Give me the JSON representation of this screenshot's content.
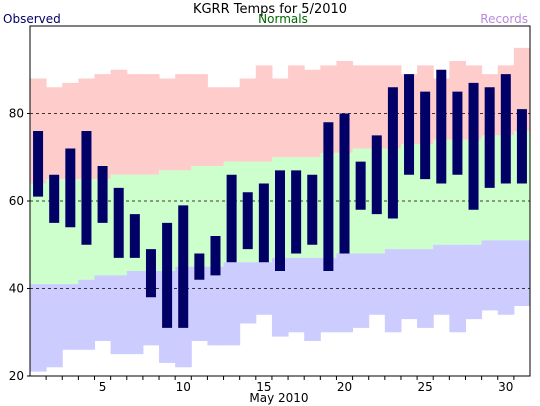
{
  "chart_data": {
    "type": "bar",
    "title": "KGRR Temps for 5/2010",
    "xlabel": "May 2010",
    "ylabel": "",
    "ylim": [
      20,
      100
    ],
    "xlim": [
      1,
      31
    ],
    "yticks": [
      20,
      40,
      60,
      80
    ],
    "xticks": [
      5,
      10,
      15,
      20,
      25,
      30
    ],
    "grid": "dashed horizontal at 40, 60, 80",
    "legend": [
      {
        "name": "Observed",
        "color": "#000066",
        "placement": "top-left"
      },
      {
        "name": "Normals",
        "color": "#006600",
        "placement": "top-center"
      },
      {
        "name": "Records",
        "color": "#bb88dd",
        "placement": "top-right"
      }
    ],
    "colors": {
      "record_high_band": "#ffcccc",
      "normal_band": "#ccffcc",
      "record_low_band": "#ccccff",
      "observed": "#000066"
    },
    "days": [
      1,
      2,
      3,
      4,
      5,
      6,
      7,
      8,
      9,
      10,
      11,
      12,
      13,
      14,
      15,
      16,
      17,
      18,
      19,
      20,
      21,
      22,
      23,
      24,
      25,
      26,
      27,
      28,
      29,
      30,
      31
    ],
    "record_high": [
      88,
      86,
      87,
      88,
      89,
      90,
      89,
      89,
      88,
      89,
      89,
      86,
      86,
      88,
      91,
      88,
      91,
      90,
      91,
      92,
      91,
      91,
      91,
      89,
      91,
      88,
      92,
      91,
      89,
      91,
      95
    ],
    "normal_high": [
      64,
      65,
      65,
      65,
      65,
      66,
      66,
      66,
      67,
      67,
      68,
      68,
      69,
      69,
      69,
      70,
      70,
      70,
      71,
      71,
      72,
      72,
      72,
      73,
      73,
      74,
      74,
      74,
      75,
      75,
      76
    ],
    "normal_low": [
      41,
      41,
      41,
      42,
      43,
      43,
      44,
      44,
      44,
      45,
      45,
      45,
      46,
      46,
      46,
      47,
      47,
      47,
      47,
      48,
      48,
      48,
      49,
      49,
      49,
      50,
      50,
      50,
      51,
      51,
      51
    ],
    "record_low": [
      21,
      22,
      26,
      26,
      28,
      25,
      25,
      27,
      23,
      22,
      28,
      27,
      27,
      32,
      34,
      29,
      30,
      28,
      30,
      30,
      31,
      34,
      30,
      33,
      31,
      34,
      30,
      33,
      35,
      34,
      36
    ],
    "observed_high": [
      76,
      66,
      72,
      76,
      68,
      63,
      57,
      49,
      55,
      59,
      48,
      52,
      66,
      62,
      64,
      67,
      67,
      66,
      78,
      80,
      69,
      75,
      86,
      89,
      85,
      90,
      85,
      87,
      86,
      89,
      81
    ],
    "observed_low": [
      61,
      55,
      54,
      50,
      55,
      47,
      47,
      38,
      31,
      31,
      42,
      43,
      46,
      49,
      46,
      44,
      48,
      50,
      44,
      48,
      58,
      57,
      56,
      66,
      65,
      64,
      66,
      58,
      63,
      64,
      64
    ]
  }
}
